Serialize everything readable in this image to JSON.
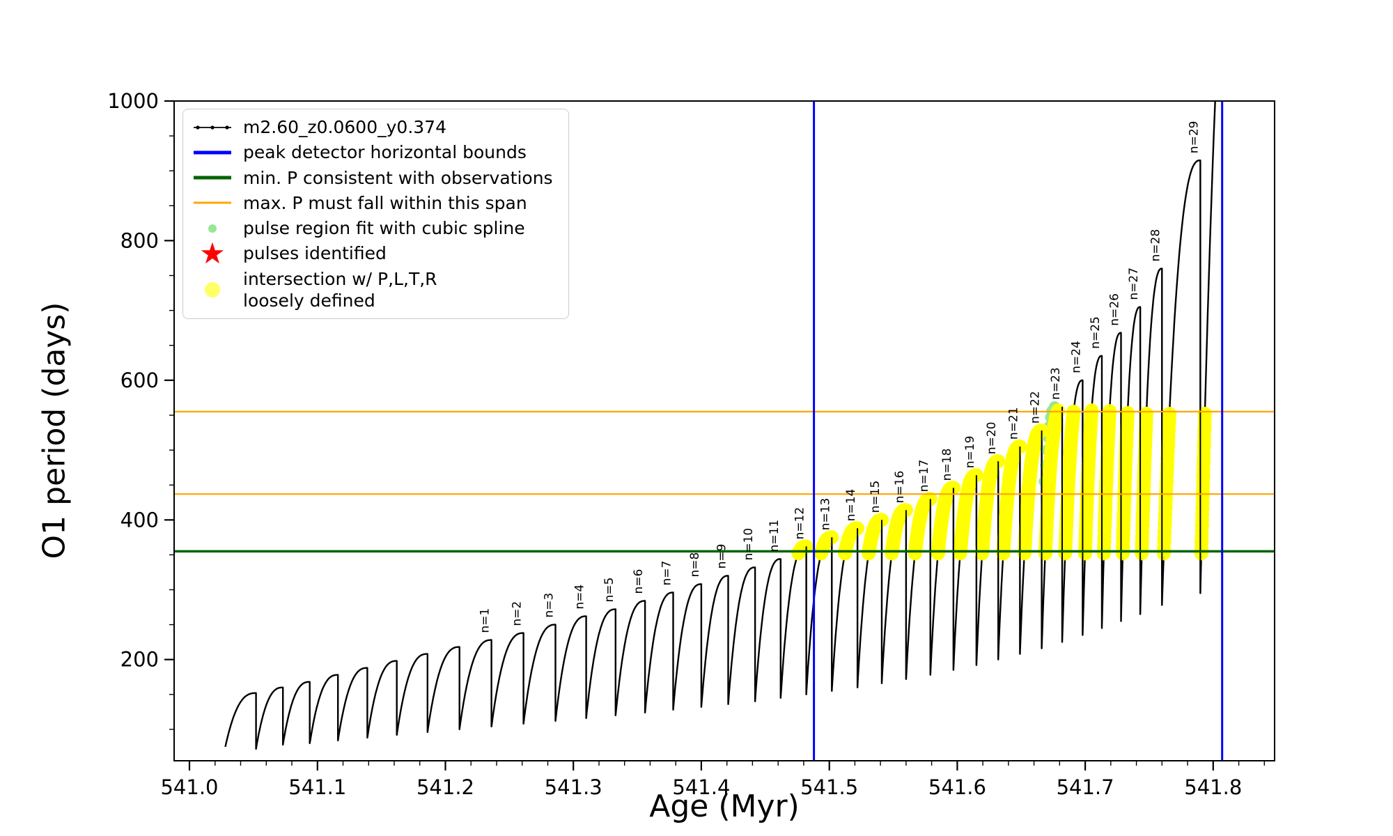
{
  "chart_data": {
    "type": "line",
    "title": "",
    "xlabel": "Age (Myr)",
    "ylabel": "O1 period (days)",
    "xlim": [
      540.988,
      541.848
    ],
    "ylim": [
      55,
      1000
    ],
    "grid": false,
    "legend_position": "upper-left",
    "x_ticks": {
      "values": [
        541.0,
        541.1,
        541.2,
        541.3,
        541.4,
        541.5,
        541.6,
        541.7,
        541.8
      ],
      "labels": [
        "541.0",
        "541.1",
        "541.2",
        "541.3",
        "541.4",
        "541.5",
        "541.6",
        "541.7",
        "541.8"
      ],
      "minor_step": 0.02
    },
    "y_ticks": {
      "values": [
        200,
        400,
        600,
        800,
        1000
      ],
      "labels": [
        "200",
        "400",
        "600",
        "800",
        "1000"
      ],
      "minor_step": 50
    },
    "series": [
      {
        "name": "m2.60_z0.0600_y0.374",
        "color": "#000000",
        "comment": "sawtooth pulse teeth: [x_start, x_end, period_at_start, period_peak, pulse_label]",
        "teeth": [
          [
            541.028,
            541.052,
            75,
            152,
            null
          ],
          [
            541.052,
            541.073,
            72,
            160,
            null
          ],
          [
            541.073,
            541.094,
            78,
            168,
            null
          ],
          [
            541.094,
            541.116,
            80,
            178,
            null
          ],
          [
            541.116,
            541.139,
            84,
            188,
            null
          ],
          [
            541.139,
            541.162,
            88,
            198,
            null
          ],
          [
            541.162,
            541.186,
            92,
            208,
            null
          ],
          [
            541.186,
            541.211,
            96,
            218,
            null
          ],
          [
            541.211,
            541.236,
            100,
            228,
            "n=1"
          ],
          [
            541.236,
            541.261,
            104,
            238,
            "n=2"
          ],
          [
            541.261,
            541.286,
            108,
            250,
            "n=3"
          ],
          [
            541.286,
            541.31,
            112,
            262,
            "n=4"
          ],
          [
            541.31,
            541.333,
            116,
            272,
            "n=5"
          ],
          [
            541.333,
            541.356,
            120,
            284,
            "n=6"
          ],
          [
            541.356,
            541.378,
            124,
            296,
            "n=7"
          ],
          [
            541.378,
            541.4,
            128,
            308,
            "n=8"
          ],
          [
            541.4,
            541.421,
            132,
            320,
            "n=9"
          ],
          [
            541.421,
            541.442,
            136,
            332,
            "n=10"
          ],
          [
            541.442,
            541.462,
            140,
            344,
            "n=11"
          ],
          [
            541.462,
            541.482,
            145,
            362,
            "n=12"
          ],
          [
            541.482,
            541.502,
            150,
            375,
            "n=13"
          ],
          [
            541.502,
            541.522,
            155,
            388,
            "n=14"
          ],
          [
            541.522,
            541.541,
            160,
            400,
            "n=15"
          ],
          [
            541.541,
            541.56,
            166,
            414,
            "n=16"
          ],
          [
            541.56,
            541.579,
            172,
            430,
            "n=17"
          ],
          [
            541.579,
            541.597,
            178,
            446,
            "n=18"
          ],
          [
            541.597,
            541.615,
            185,
            464,
            "n=19"
          ],
          [
            541.615,
            541.632,
            192,
            484,
            "n=20"
          ],
          [
            541.632,
            541.649,
            200,
            505,
            "n=21"
          ],
          [
            541.649,
            541.666,
            208,
            528,
            "n=22"
          ],
          [
            541.666,
            541.682,
            216,
            562,
            "n=23"
          ],
          [
            541.682,
            541.698,
            225,
            600,
            "n=24"
          ],
          [
            541.698,
            541.713,
            235,
            635,
            "n=25"
          ],
          [
            541.713,
            541.728,
            245,
            668,
            "n=26"
          ],
          [
            541.728,
            541.743,
            255,
            705,
            "n=27"
          ],
          [
            541.743,
            541.76,
            265,
            760,
            "n=28"
          ],
          [
            541.76,
            541.79,
            278,
            915,
            "n=29"
          ],
          [
            541.79,
            541.828,
            295,
            1450,
            null
          ]
        ]
      }
    ],
    "vlines": {
      "label": "peak detector horizontal bounds",
      "color": "#0000ff",
      "x": [
        541.488,
        541.807
      ]
    },
    "hline_min_p": {
      "label": "min. P consistent with observations",
      "color": "#006400",
      "y": 355
    },
    "hlines_max_p": {
      "label": "max. P must fall within this span",
      "color": "#ffa500",
      "y": [
        437,
        555
      ]
    },
    "yellow_intersection": {
      "label": "intersection w/ P,L,T,R loosely defined",
      "color": "#ffff00",
      "y_min": 352,
      "y_max": 557,
      "x_max": 541.815,
      "radius": 10
    },
    "spline_fit_dots": {
      "label": "pulse region fit with cubic spline",
      "color": "#98e698",
      "points": [
        [
          541.668,
          455
        ],
        [
          541.669,
          478
        ],
        [
          541.67,
          500
        ],
        [
          541.671,
          518
        ],
        [
          541.672,
          534
        ],
        [
          541.673,
          547
        ],
        [
          541.674,
          556
        ],
        [
          541.676,
          562
        ]
      ]
    },
    "pulses_identified": {
      "label": "pulses identified",
      "color": "#ff0000",
      "points": []
    }
  },
  "legend": {
    "items": [
      {
        "icon": "series-line-icon",
        "swatch": "line-marker",
        "color": "#000000",
        "lw": 1.8,
        "label": "m2.60_z0.0600_y0.374"
      },
      {
        "icon": "bounds-line-icon",
        "swatch": "line",
        "color": "#0000ff",
        "lw": 5,
        "label": "peak detector horizontal bounds"
      },
      {
        "icon": "min-p-line-icon",
        "swatch": "line",
        "color": "#006400",
        "lw": 5,
        "label": "min. P consistent with observations"
      },
      {
        "icon": "max-p-line-icon",
        "swatch": "line",
        "color": "#ffa500",
        "lw": 3,
        "label": "max. P must fall within this span"
      },
      {
        "icon": "spline-dot-icon",
        "swatch": "dot-small",
        "color": "#98e698",
        "label": "pulse region fit with cubic spline"
      },
      {
        "icon": "pulse-star-icon",
        "swatch": "star",
        "color": "#ff0000",
        "label": "pulses identified"
      },
      {
        "icon": "intersection-dot-icon",
        "swatch": "dot-big",
        "color": "#ffff00",
        "label": "intersection w/ P,L,T,R\nloosely defined"
      }
    ]
  }
}
